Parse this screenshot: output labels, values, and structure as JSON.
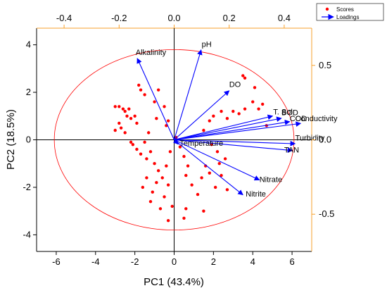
{
  "chart_data": {
    "type": "scatter",
    "xlabel": "PC1 (43.4%)",
    "ylabel": "PC2 (18.5%)",
    "xlim": [
      -7,
      7
    ],
    "ylim": [
      -4.7,
      4.7
    ],
    "top_xlim": [
      -0.5,
      0.5
    ],
    "right_ylim": [
      -0.75,
      0.75
    ],
    "x_ticks": [
      "-6",
      "-4",
      "-2",
      "0",
      "2",
      "4",
      "6"
    ],
    "y_ticks": [
      "-4",
      "-2",
      "0",
      "2",
      "4"
    ],
    "top_ticks": [
      "-0.4",
      "-0.2",
      "0.0",
      "0.2",
      "0.4"
    ],
    "right_ticks": [
      "-0.5",
      "0.0",
      "0.5"
    ],
    "grid": false,
    "legend_position": "top-right",
    "legend": [
      "Scores",
      "Loadings"
    ],
    "colors": {
      "scores": "#ff0000",
      "loadings": "#0000ff",
      "top_right_axes": "#f7a12c",
      "ellipse": "#ff0000"
    },
    "ellipse": {
      "cx": 0,
      "cy": 0,
      "rx": 6.1,
      "ry": 3.8
    },
    "scores": [
      [
        -3,
        1.4
      ],
      [
        -2.8,
        1.4
      ],
      [
        -2.6,
        1.3
      ],
      [
        -2.5,
        1.2
      ],
      [
        -2.4,
        1
      ],
      [
        -2.3,
        1.3
      ],
      [
        -2.2,
        0.9
      ],
      [
        -2,
        1
      ],
      [
        -1.9,
        0.7
      ],
      [
        -2.8,
        0.7
      ],
      [
        -3,
        0.4
      ],
      [
        -2.7,
        0.5
      ],
      [
        -2.5,
        0.3
      ],
      [
        -2.2,
        -0.1
      ],
      [
        -2.1,
        -0.2
      ],
      [
        -1.9,
        -0.4
      ],
      [
        -1.7,
        -0.6
      ],
      [
        -1.5,
        -0.1
      ],
      [
        -1.4,
        -0.8
      ],
      [
        -1.2,
        -0.5
      ],
      [
        -1,
        -1
      ],
      [
        -0.8,
        -1.3
      ],
      [
        -0.6,
        -1.6
      ],
      [
        -0.4,
        -1.1
      ],
      [
        -0.3,
        -1.9
      ],
      [
        -0.2,
        -0.5
      ],
      [
        -0.5,
        -2.4
      ],
      [
        -0.7,
        -2.9
      ],
      [
        -1.1,
        -2.2
      ],
      [
        -1.4,
        -1.6
      ],
      [
        -1.6,
        -2
      ],
      [
        -1.2,
        -2.6
      ],
      [
        -0.9,
        -1.8
      ],
      [
        -0.3,
        -3.4
      ],
      [
        -0.1,
        -2.8
      ],
      [
        -1.8,
        2.3
      ],
      [
        -1.7,
        2.1
      ],
      [
        -1.5,
        1.9
      ],
      [
        -1,
        1.6
      ],
      [
        -0.8,
        2.1
      ],
      [
        -0.5,
        1.4
      ],
      [
        -0.9,
        0.9
      ],
      [
        -0.4,
        0.6
      ],
      [
        -0.3,
        0.8
      ],
      [
        -1.3,
        0.3
      ],
      [
        0.1,
        0.1
      ],
      [
        0.3,
        -0.3
      ],
      [
        0.5,
        -0.7
      ],
      [
        0.7,
        -1.1
      ],
      [
        0.6,
        -1.5
      ],
      [
        0.9,
        -1.9
      ],
      [
        1.2,
        -2.3
      ],
      [
        1.4,
        -1.6
      ],
      [
        1.6,
        -1.1
      ],
      [
        1.8,
        -1.4
      ],
      [
        2.1,
        -2
      ],
      [
        2.4,
        -1.5
      ],
      [
        2.6,
        -0.8
      ],
      [
        2.2,
        -0.5
      ],
      [
        1.9,
        -0.2
      ],
      [
        1.5,
        0.4
      ],
      [
        1.8,
        0.8
      ],
      [
        2,
        1
      ],
      [
        2.4,
        1.2
      ],
      [
        2.7,
        0.9
      ],
      [
        3,
        1.2
      ],
      [
        3.3,
        1.1
      ],
      [
        3.6,
        1.3
      ],
      [
        4.1,
        2.2
      ],
      [
        4,
        1.6
      ],
      [
        3.6,
        2.6
      ],
      [
        3.5,
        2.7
      ],
      [
        4.3,
        1.3
      ],
      [
        4.5,
        1.5
      ],
      [
        4.7,
        0.6
      ],
      [
        2.3,
        -1
      ],
      [
        2.7,
        -2.1
      ],
      [
        1.5,
        -3
      ],
      [
        0.5,
        -3.3
      ],
      [
        0.6,
        -2.9
      ]
    ],
    "loadings": [
      {
        "label": "Alkalinity",
        "x": -0.134,
        "y": 0.547,
        "lx": -0.14,
        "ly": 0.57,
        "anchor": "start"
      },
      {
        "label": "pH",
        "x": 0.098,
        "y": 0.604,
        "lx": 0.1,
        "ly": 0.625,
        "anchor": "start"
      },
      {
        "label": "DO",
        "x": 0.2,
        "y": 0.33,
        "lx": 0.2,
        "ly": 0.355,
        "anchor": "start"
      },
      {
        "label": "T. Sol",
        "x": 0.358,
        "y": 0.16,
        "lx": 0.36,
        "ly": 0.17,
        "anchor": "start"
      },
      {
        "label": "BOD",
        "x": 0.39,
        "y": 0.145,
        "lx": 0.39,
        "ly": 0.165,
        "anchor": "start"
      },
      {
        "label": "COD",
        "x": 0.42,
        "y": 0.122,
        "lx": 0.42,
        "ly": 0.125,
        "anchor": "start"
      },
      {
        "label": "Conductivity",
        "x": 0.46,
        "y": 0.11,
        "lx": 0.44,
        "ly": 0.125,
        "anchor": "start"
      },
      {
        "label": "Turbidity",
        "x": 0.44,
        "y": -0.026,
        "lx": 0.44,
        "ly": -0.005,
        "anchor": "start"
      },
      {
        "label": "TAN",
        "x": 0.43,
        "y": -0.072,
        "lx": 0.4,
        "ly": -0.085,
        "anchor": "start"
      },
      {
        "label": "Temperature",
        "x": 0.015,
        "y": -0.03,
        "lx": 0.02,
        "ly": -0.04,
        "anchor": "start"
      },
      {
        "label": "Nitrate",
        "x": 0.31,
        "y": -0.27,
        "lx": 0.31,
        "ly": -0.285,
        "anchor": "start"
      },
      {
        "label": "Nitrite",
        "x": 0.25,
        "y": -0.37,
        "lx": 0.26,
        "ly": -0.38,
        "anchor": "start"
      }
    ]
  }
}
